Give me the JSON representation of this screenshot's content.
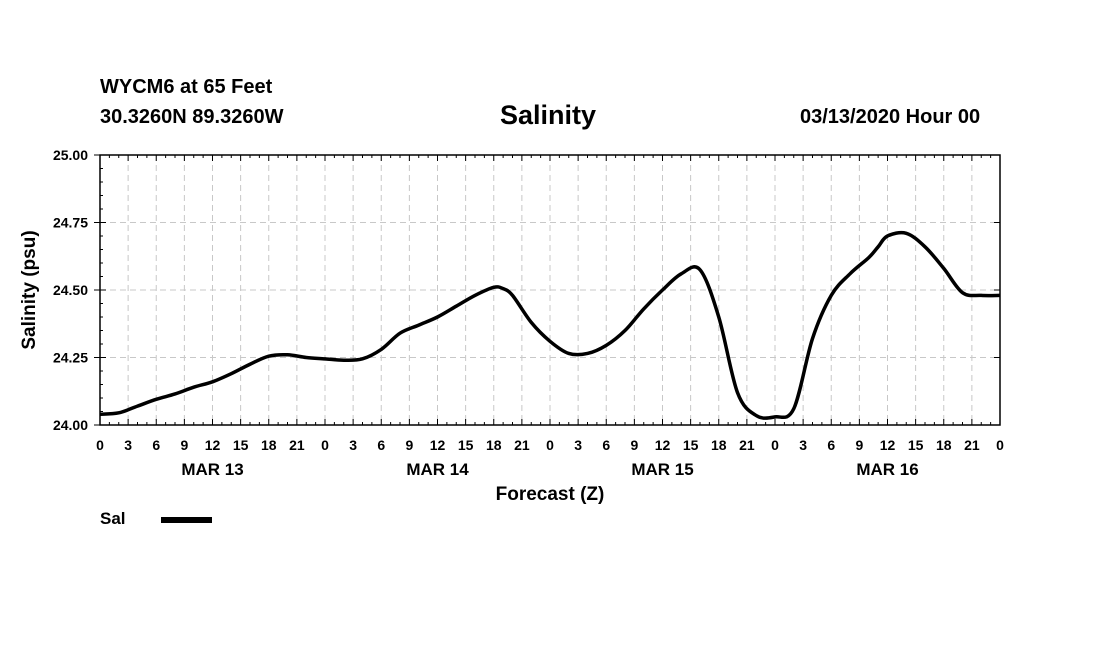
{
  "header": {
    "station": "WYCM6 at 65 Feet",
    "coords": "30.3260N 89.3260W",
    "title": "Salinity",
    "run": "03/13/2020 Hour 00"
  },
  "legend": {
    "label": "Sal",
    "color": "#000000"
  },
  "chart_data": {
    "type": "line",
    "title": "Salinity",
    "xlabel": "Forecast (Z)",
    "ylabel": "Salinity (psu)",
    "ylim": [
      24.0,
      25.0
    ],
    "yticks": [
      "24.00",
      "24.25",
      "24.50",
      "24.75",
      "25.00"
    ],
    "xlim": [
      0,
      96
    ],
    "x_unit": "forecast hour",
    "x_tick_labels": [
      "0",
      "3",
      "6",
      "9",
      "12",
      "15",
      "18",
      "21",
      "0",
      "3",
      "6",
      "9",
      "12",
      "15",
      "18",
      "21",
      "0",
      "3",
      "6",
      "9",
      "12",
      "15",
      "18",
      "21",
      "0",
      "3",
      "6",
      "9",
      "12",
      "15",
      "18",
      "21",
      "0"
    ],
    "date_labels": [
      "MAR 13",
      "MAR 14",
      "MAR 15",
      "MAR 16"
    ],
    "grid": true,
    "legend_position": "bottom-left",
    "series": [
      {
        "name": "Sal",
        "color": "#000000",
        "x": [
          0,
          2,
          4,
          6,
          8,
          10,
          12,
          14,
          16,
          18,
          20,
          22,
          24,
          26,
          28,
          30,
          32,
          34,
          36,
          38,
          40,
          42,
          43,
          44,
          46,
          48,
          50,
          52,
          54,
          56,
          58,
          60,
          62,
          64,
          66,
          68,
          70,
          72,
          74,
          76,
          78,
          80,
          82,
          83,
          84,
          86,
          88,
          90,
          92,
          94,
          96
        ],
        "y": [
          24.04,
          24.045,
          24.07,
          24.095,
          24.115,
          24.14,
          24.16,
          24.19,
          24.225,
          24.255,
          24.26,
          24.25,
          24.245,
          24.24,
          24.245,
          24.28,
          24.34,
          24.37,
          24.4,
          24.44,
          24.48,
          24.51,
          24.505,
          24.48,
          24.38,
          24.31,
          24.265,
          24.265,
          24.295,
          24.35,
          24.43,
          24.5,
          24.56,
          24.575,
          24.4,
          24.12,
          24.035,
          24.03,
          24.06,
          24.32,
          24.48,
          24.56,
          24.62,
          24.66,
          24.7,
          24.71,
          24.66,
          24.58,
          24.49,
          24.48,
          24.48
        ]
      }
    ]
  }
}
